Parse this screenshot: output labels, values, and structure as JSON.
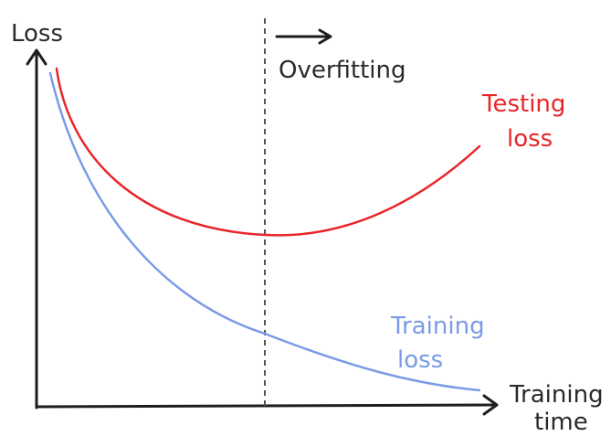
{
  "y_axis": {
    "label": "Loss"
  },
  "x_axis": {
    "label": [
      "Training",
      "time"
    ]
  },
  "marker": {
    "label": "Overfitting"
  },
  "curves": [
    {
      "name": [
        "Testing",
        "loss"
      ],
      "color": "#e8262a"
    },
    {
      "name": [
        "Training",
        "loss"
      ],
      "color": "#7a9be6"
    }
  ]
}
